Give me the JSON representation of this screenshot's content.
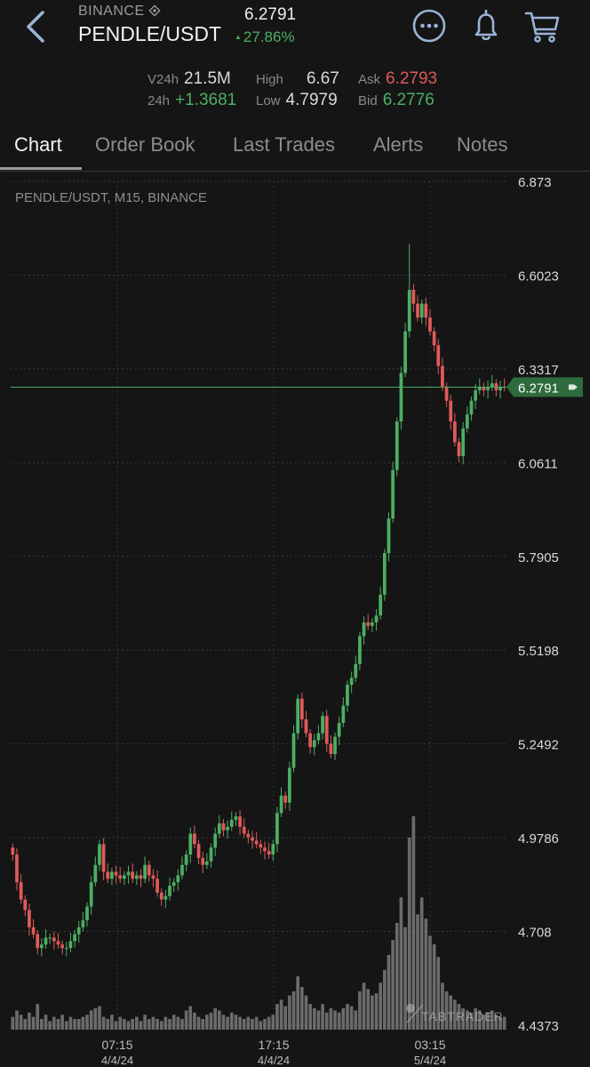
{
  "header": {
    "exchange": "BINANCE",
    "pair": "PENDLE/USDT",
    "last_price": "6.2791",
    "change": "27.86%",
    "colors": {
      "up": "#4caf63",
      "down": "#e05a5a"
    }
  },
  "stats": {
    "v24h_label": "V24h",
    "v24h_value": "21.5M",
    "h24_label": "24h",
    "h24_value": "+1.3681",
    "high_label": "High",
    "high_value": "6.67",
    "low_label": "Low",
    "low_value": "4.7979",
    "ask_label": "Ask",
    "ask_value": "6.2793",
    "bid_label": "Bid",
    "bid_value": "6.2776"
  },
  "tabs": [
    "Chart",
    "Order Book",
    "Last Trades",
    "Alerts",
    "Notes"
  ],
  "chart_data": {
    "type": "candlestick",
    "title": "PENDLE/USDT, M15, BINANCE",
    "y_ticks": [
      "6.873",
      "6.6023",
      "6.3317",
      "6.0611",
      "5.7905",
      "5.5198",
      "5.2492",
      "4.9786",
      "4.708",
      "4.4373"
    ],
    "ylim": [
      4.4373,
      6.873
    ],
    "x_ticks": [
      {
        "time": "07:15",
        "date": "4/4/24"
      },
      {
        "time": "17:15",
        "date": "4/4/24"
      },
      {
        "time": "03:15",
        "date": "5/4/24"
      }
    ],
    "current_price": 6.2791,
    "current_price_label": "6.2791",
    "watermark": "TABTRADER",
    "close": [
      4.93,
      4.85,
      4.8,
      4.77,
      4.72,
      4.7,
      4.66,
      4.67,
      4.69,
      4.69,
      4.68,
      4.67,
      4.66,
      4.66,
      4.68,
      4.7,
      4.72,
      4.74,
      4.78,
      4.85,
      4.9,
      4.96,
      4.88,
      4.86,
      4.88,
      4.87,
      4.86,
      4.87,
      4.88,
      4.86,
      4.87,
      4.86,
      4.9,
      4.87,
      4.86,
      4.82,
      4.8,
      4.81,
      4.84,
      4.85,
      4.87,
      4.9,
      4.93,
      4.99,
      4.96,
      4.92,
      4.9,
      4.91,
      4.95,
      4.99,
      5.02,
      5.0,
      5.01,
      5.03,
      5.04,
      5.01,
      4.99,
      4.98,
      4.97,
      4.96,
      4.95,
      4.94,
      4.93,
      4.96,
      5.05,
      5.1,
      5.08,
      5.18,
      5.28,
      5.38,
      5.32,
      5.28,
      5.24,
      5.26,
      5.28,
      5.33,
      5.25,
      5.22,
      5.27,
      5.31,
      5.36,
      5.42,
      5.44,
      5.48,
      5.56,
      5.6,
      5.59,
      5.6,
      5.62,
      5.68,
      5.8,
      5.9,
      6.04,
      6.18,
      6.32,
      6.44,
      6.56,
      6.52,
      6.48,
      6.52,
      6.48,
      6.44,
      6.4,
      6.34,
      6.28,
      6.24,
      6.18,
      6.12,
      6.08,
      6.16,
      6.2,
      6.24,
      6.27,
      6.28,
      6.27,
      6.28,
      6.29,
      6.27,
      6.28,
      6.2791
    ],
    "volume": [
      6,
      9,
      7,
      5,
      8,
      6,
      12,
      5,
      7,
      4,
      6,
      5,
      7,
      4,
      6,
      5,
      5,
      6,
      7,
      9,
      10,
      11,
      6,
      5,
      7,
      4,
      6,
      5,
      4,
      5,
      6,
      4,
      7,
      5,
      6,
      5,
      4,
      6,
      5,
      7,
      6,
      5,
      9,
      11,
      8,
      6,
      5,
      7,
      8,
      10,
      9,
      7,
      6,
      8,
      7,
      6,
      5,
      6,
      5,
      6,
      4,
      5,
      6,
      7,
      12,
      14,
      11,
      16,
      18,
      25,
      20,
      16,
      12,
      10,
      9,
      12,
      8,
      10,
      9,
      8,
      10,
      12,
      11,
      9,
      18,
      22,
      19,
      16,
      17,
      22,
      28,
      35,
      42,
      50,
      62,
      48,
      90,
      100,
      54,
      62,
      52,
      44,
      40,
      34,
      22,
      18,
      16,
      14,
      12,
      10,
      9,
      8,
      10,
      9,
      7,
      8,
      9,
      7,
      6,
      6
    ]
  }
}
